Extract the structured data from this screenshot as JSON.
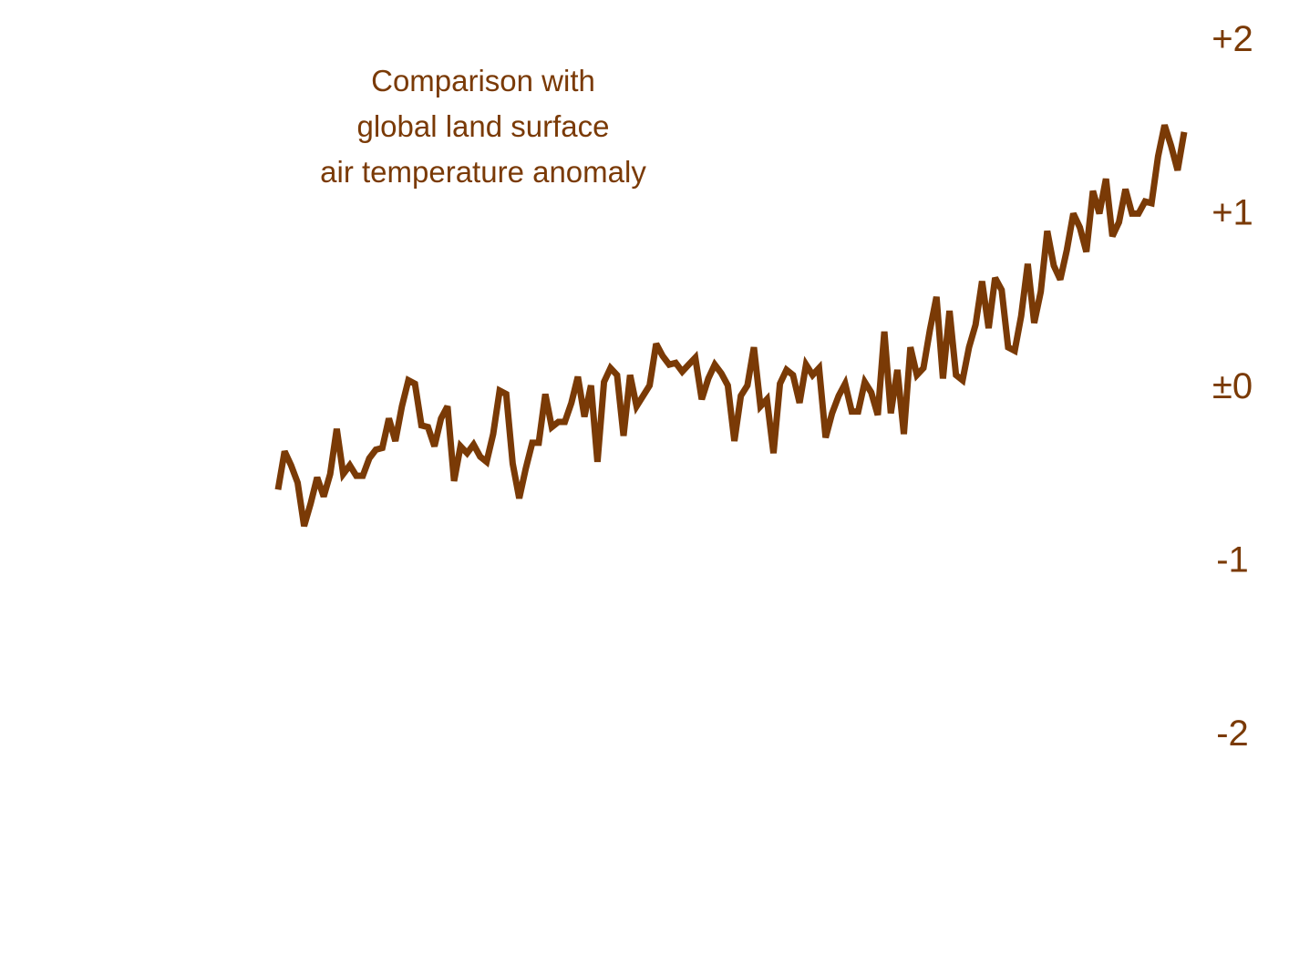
{
  "chart_data": {
    "type": "line",
    "title": "Comparison with\nglobal land surface\nair temperature anomaly",
    "xlabel": "",
    "ylabel": "",
    "ylim": [
      -2,
      2
    ],
    "y_ticks": [
      {
        "value": 2,
        "label": "+2"
      },
      {
        "value": 1,
        "label": "+1"
      },
      {
        "value": 0,
        "label": "±0"
      },
      {
        "value": -1,
        "label": "-1"
      },
      {
        "value": -2,
        "label": "-2"
      }
    ],
    "grid": false,
    "legend": "none",
    "x_axis_shown": false,
    "line_color": "#7a3a06",
    "series": [
      {
        "values": [
          -0.6,
          -0.38,
          -0.46,
          -0.56,
          -0.81,
          -0.68,
          -0.53,
          -0.64,
          -0.51,
          -0.25,
          -0.51,
          -0.46,
          -0.52,
          -0.52,
          -0.42,
          -0.37,
          -0.36,
          -0.19,
          -0.32,
          -0.12,
          0.03,
          0.01,
          -0.23,
          -0.24,
          -0.35,
          -0.19,
          -0.12,
          -0.55,
          -0.35,
          -0.39,
          -0.34,
          -0.41,
          -0.44,
          -0.28,
          -0.03,
          -0.05,
          -0.45,
          -0.65,
          -0.48,
          -0.33,
          -0.33,
          -0.05,
          -0.24,
          -0.21,
          -0.21,
          -0.1,
          0.05,
          -0.18,
          0.0,
          -0.44,
          0.02,
          0.1,
          0.06,
          -0.29,
          0.06,
          -0.12,
          -0.06,
          0.0,
          0.24,
          0.17,
          0.12,
          0.13,
          0.08,
          0.12,
          0.16,
          -0.08,
          0.04,
          0.12,
          0.07,
          0.0,
          -0.32,
          -0.06,
          0.0,
          0.22,
          -0.12,
          -0.08,
          -0.39,
          0.01,
          0.09,
          0.06,
          -0.1,
          0.12,
          0.06,
          0.1,
          -0.3,
          -0.16,
          -0.06,
          0.01,
          -0.15,
          -0.15,
          0.02,
          -0.04,
          -0.17,
          0.31,
          -0.16,
          0.09,
          -0.28,
          0.22,
          0.06,
          0.1,
          0.32,
          0.51,
          0.04,
          0.43,
          0.06,
          0.03,
          0.22,
          0.35,
          0.6,
          0.33,
          0.62,
          0.55,
          0.22,
          0.2,
          0.4,
          0.7,
          0.36,
          0.54,
          0.89,
          0.69,
          0.61,
          0.78,
          0.99,
          0.91,
          0.77,
          1.12,
          0.99,
          1.19,
          0.86,
          0.94,
          1.13,
          0.99,
          0.99,
          1.06,
          1.05,
          1.32,
          1.5,
          1.38,
          1.24,
          1.46
        ]
      }
    ]
  }
}
